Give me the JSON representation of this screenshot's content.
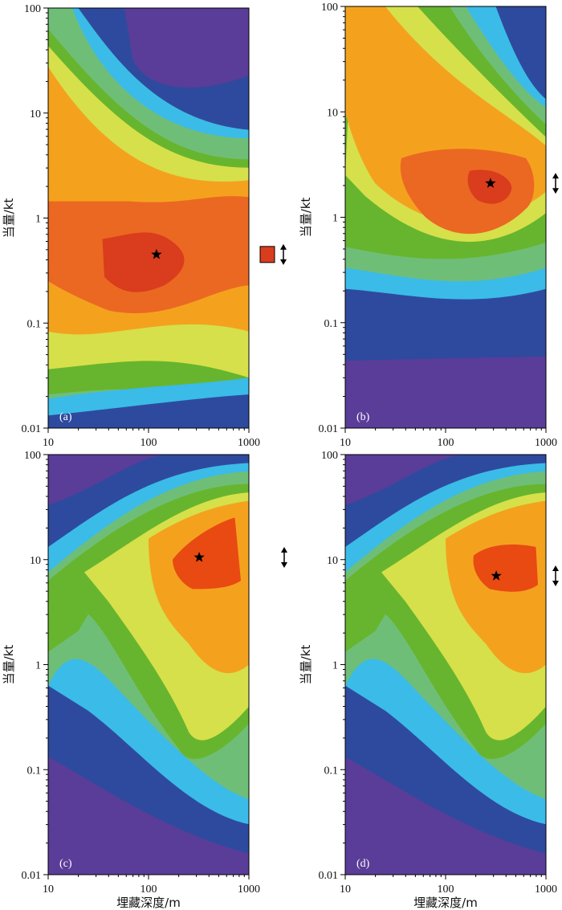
{
  "figure": {
    "background": "#ffffff"
  },
  "colormap": {
    "levels": [
      "#5a3d98",
      "#2e4a9e",
      "#26459c",
      "#3bbbe8",
      "#6fbe78",
      "#67b52e",
      "#d6e04a",
      "#e0e000",
      "#f4a21e",
      "#eb6822",
      "#e84a12",
      "#d93d1d"
    ],
    "contour_bands": [
      "#5a3d98",
      "#2e4a9e",
      "#3bbbe8",
      "#6fbe78",
      "#67b52e",
      "#d6e04a",
      "#f4a21e",
      "#eb6822",
      "#d93d1d"
    ]
  },
  "chart_data": [
    {
      "type": "heatmap",
      "panel": "(a)",
      "xlabel": "",
      "ylabel": "当量/kt",
      "xscale": "log",
      "yscale": "log",
      "xlim": [
        10,
        1000
      ],
      "ylim": [
        0.01,
        100
      ],
      "x_ticks": [
        "10",
        "100",
        "1000"
      ],
      "y_ticks": [
        "0.01",
        "0.1",
        "1",
        "10",
        "100"
      ],
      "best_fit": {
        "x": 120,
        "y": 0.45,
        "marker": "star"
      },
      "side_marker": {
        "y": 0.45,
        "has_box": true,
        "box_color": "#d93d1d"
      },
      "peak_color": "#d93d1d"
    },
    {
      "type": "heatmap",
      "panel": "(b)",
      "xlabel": "",
      "ylabel": "当量/kt",
      "xscale": "log",
      "yscale": "log",
      "xlim": [
        10,
        1000
      ],
      "ylim": [
        0.01,
        100
      ],
      "x_ticks": [
        "10",
        "100",
        "1000"
      ],
      "y_ticks": [
        "0.01",
        "0.1",
        "1",
        "10",
        "100"
      ],
      "best_fit": {
        "x": 280,
        "y": 2.1,
        "marker": "star"
      },
      "side_marker": {
        "y": 2.1,
        "has_box": false
      },
      "peak_color": "#d93d1d"
    },
    {
      "type": "heatmap",
      "panel": "(c)",
      "xlabel": "埋藏深度/m",
      "ylabel": "当量/kt",
      "xscale": "log",
      "yscale": "log",
      "xlim": [
        10,
        1000
      ],
      "ylim": [
        0.01,
        100
      ],
      "x_ticks": [
        "10",
        "100",
        "1000"
      ],
      "y_ticks": [
        "0.01",
        "0.1",
        "1",
        "10",
        "100"
      ],
      "best_fit": {
        "x": 320,
        "y": 10.5,
        "marker": "star"
      },
      "side_marker": {
        "y": 10.5,
        "has_box": false
      },
      "peak_color": "#e84a12"
    },
    {
      "type": "heatmap",
      "panel": "(d)",
      "xlabel": "埋藏深度/m",
      "ylabel": "当量/kt",
      "xscale": "log",
      "yscale": "log",
      "xlim": [
        10,
        1000
      ],
      "ylim": [
        0.01,
        100
      ],
      "x_ticks": [
        "10",
        "100",
        "1000"
      ],
      "y_ticks": [
        "0.01",
        "0.1",
        "1",
        "10",
        "100"
      ],
      "best_fit": {
        "x": 320,
        "y": 7.0,
        "marker": "star"
      },
      "side_marker": {
        "y": 7.0,
        "has_box": false
      },
      "peak_color": "#e84a12"
    }
  ]
}
